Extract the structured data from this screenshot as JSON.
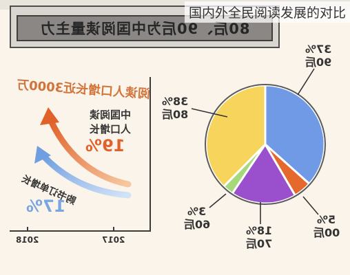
{
  "title": "国内外全民阅读发展的对比",
  "banner": "80后、90后为中国阅读量主力",
  "growth": {
    "headline": "阅读人口增长近3000万",
    "reading_label_1": "中国阅读",
    "reading_label_2": "人口增长",
    "reading_value": "19%",
    "orders_label": "购书订单增长",
    "orders_value": "17%",
    "years": [
      "2018",
      "2017"
    ]
  },
  "colors": {
    "background": "#fbf4ea",
    "reading_arrow": "#e0622a",
    "orders_arrow": "#79a6e2"
  },
  "chart_data": [
    {
      "type": "pie",
      "slices": [
        {
          "name": "90后",
          "value": 37,
          "label": "37%",
          "color": "#7099e6"
        },
        {
          "name": "00后",
          "value": 5,
          "label": "5%",
          "color": "#e5692d"
        },
        {
          "name": "70后",
          "value": 18,
          "label": "18%",
          "color": "#9a4fcc"
        },
        {
          "name": "60后",
          "value": 3,
          "label": "3%",
          "color": "#a6d87c"
        },
        {
          "name": "80后",
          "value": 38,
          "label": "38%",
          "color": "#f7d45c"
        }
      ]
    }
  ]
}
